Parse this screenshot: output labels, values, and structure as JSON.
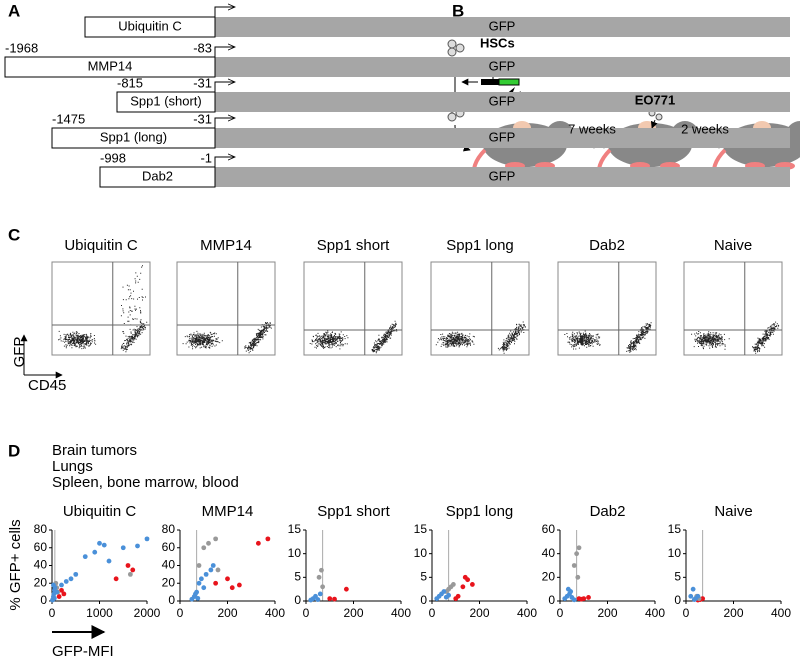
{
  "panel_a": {
    "label": "A",
    "reporter": "GFP",
    "constructs": [
      {
        "name": "Ubiquitin C"
      },
      {
        "name": "MMP14",
        "start": -1968,
        "end": -83
      },
      {
        "name": "Spp1 (short)",
        "start": -815,
        "end": -31
      },
      {
        "name": "Spp1 (long)",
        "start": -1475,
        "end": -31
      },
      {
        "name": "Dab2",
        "start": -998,
        "end": -1
      }
    ]
  },
  "panel_b": {
    "label": "B",
    "cells": "HSCs",
    "tumor": "EO771",
    "steps": [
      "7 weeks",
      "2 weeks"
    ]
  },
  "panel_c": {
    "label": "C",
    "y_axis": "GFP",
    "x_axis": "CD45",
    "samples": [
      "Ubiquitin C",
      "MMP14",
      "Spp1 short",
      "Spp1 long",
      "Dab2",
      "Naive"
    ]
  },
  "panel_d": {
    "label": "D",
    "legend": [
      {
        "name": "Brain tumors",
        "color": "#e8141c"
      },
      {
        "name": "Lungs",
        "color": "#999999"
      },
      {
        "name": "Spleen, bone marrow, blood",
        "color": "#2a78b0"
      }
    ],
    "y_label": "% GFP+ cells",
    "x_label": "GFP-MFI"
  },
  "chart_data": [
    {
      "type": "scatter",
      "title": "Ubiquitin C",
      "xlim": [
        0,
        2000
      ],
      "xticks": [
        0,
        1000,
        2000
      ],
      "ylim": [
        0,
        80
      ],
      "yticks": [
        0,
        20,
        40,
        60,
        80
      ],
      "threshold_x": 60,
      "series": [
        {
          "color": "#e8141c",
          "x": [
            150,
            250,
            200,
            1350,
            1600,
            1700
          ],
          "y": [
            5,
            8,
            12,
            25,
            40,
            35
          ]
        },
        {
          "color": "#999999",
          "x": [
            50,
            80,
            100,
            120,
            1650
          ],
          "y": [
            18,
            20,
            15,
            10,
            30
          ]
        },
        {
          "color": "#4a90d9",
          "x": [
            10,
            20,
            30,
            40,
            50,
            50,
            60,
            30,
            100,
            200,
            300,
            400,
            500,
            700,
            900,
            1000,
            1100,
            1200,
            1500,
            1800,
            2000
          ],
          "y": [
            1,
            2,
            5,
            8,
            3,
            12,
            15,
            18,
            10,
            18,
            22,
            25,
            30,
            50,
            55,
            65,
            63,
            45,
            60,
            62,
            70
          ]
        }
      ]
    },
    {
      "type": "scatter",
      "title": "MMP14",
      "xlim": [
        0,
        400
      ],
      "xticks": [
        0,
        200,
        400
      ],
      "ylim": [
        0,
        80
      ],
      "yticks": [
        0,
        20,
        40,
        60,
        80
      ],
      "threshold_x": 70,
      "series": [
        {
          "color": "#e8141c",
          "x": [
            150,
            200,
            220,
            250,
            330,
            370
          ],
          "y": [
            20,
            25,
            15,
            18,
            65,
            70
          ]
        },
        {
          "color": "#999999",
          "x": [
            80,
            100,
            120,
            150,
            160
          ],
          "y": [
            40,
            60,
            65,
            70,
            35
          ]
        },
        {
          "color": "#4a90d9",
          "x": [
            50,
            60,
            65,
            70,
            75,
            80,
            90,
            100,
            110,
            130,
            140
          ],
          "y": [
            2,
            5,
            8,
            10,
            3,
            20,
            25,
            15,
            30,
            35,
            40
          ]
        }
      ]
    },
    {
      "type": "scatter",
      "title": "Spp1 short",
      "xlim": [
        0,
        400
      ],
      "xticks": [
        0,
        200,
        400
      ],
      "ylim": [
        0,
        15
      ],
      "yticks": [
        0,
        5,
        10,
        15
      ],
      "threshold_x": 70,
      "series": [
        {
          "color": "#e8141c",
          "x": [
            100,
            120,
            170
          ],
          "y": [
            0.5,
            0.4,
            2.5
          ]
        },
        {
          "color": "#999999",
          "x": [
            55,
            65,
            70
          ],
          "y": [
            5,
            6.5,
            3
          ]
        },
        {
          "color": "#4a90d9",
          "x": [
            20,
            30,
            40,
            50,
            60
          ],
          "y": [
            0.2,
            0.5,
            1,
            0.3,
            1.5
          ]
        }
      ]
    },
    {
      "type": "scatter",
      "title": "Spp1 long",
      "xlim": [
        0,
        400
      ],
      "xticks": [
        0,
        200,
        400
      ],
      "ylim": [
        0,
        15
      ],
      "yticks": [
        0,
        5,
        10,
        15
      ],
      "threshold_x": 70,
      "series": [
        {
          "color": "#e8141c",
          "x": [
            100,
            110,
            130,
            140,
            150,
            170
          ],
          "y": [
            0.5,
            1,
            3,
            5,
            4.5,
            3.5
          ]
        },
        {
          "color": "#999999",
          "x": [
            60,
            70,
            80,
            90
          ],
          "y": [
            2,
            2.5,
            3,
            3.5
          ]
        },
        {
          "color": "#4a90d9",
          "x": [
            20,
            30,
            40,
            50,
            60,
            70
          ],
          "y": [
            0.5,
            1,
            1.5,
            2,
            0.8,
            1.2
          ]
        }
      ]
    },
    {
      "type": "scatter",
      "title": "Dab2",
      "xlim": [
        0,
        400
      ],
      "xticks": [
        0,
        200,
        400
      ],
      "ylim": [
        0,
        60
      ],
      "yticks": [
        0,
        20,
        40,
        60
      ],
      "threshold_x": 70,
      "series": [
        {
          "color": "#e8141c",
          "x": [
            80,
            90,
            100,
            120
          ],
          "y": [
            2,
            1.5,
            2,
            3
          ]
        },
        {
          "color": "#999999",
          "x": [
            60,
            70,
            75,
            80
          ],
          "y": [
            30,
            40,
            20,
            45
          ]
        },
        {
          "color": "#4a90d9",
          "x": [
            20,
            30,
            35,
            40,
            45,
            50,
            60
          ],
          "y": [
            2,
            4,
            10,
            6,
            8,
            3,
            1
          ]
        }
      ]
    },
    {
      "type": "scatter",
      "title": "Naive",
      "xlim": [
        0,
        400
      ],
      "xticks": [
        0,
        200,
        400
      ],
      "ylim": [
        0,
        15
      ],
      "yticks": [
        0,
        5,
        10,
        15
      ],
      "threshold_x": 70,
      "series": [
        {
          "color": "#e8141c",
          "x": [
            50,
            60,
            70
          ],
          "y": [
            0.2,
            0.3,
            0.5
          ]
        },
        {
          "color": "#999999",
          "x": [
            45,
            55
          ],
          "y": [
            1,
            0.5
          ]
        },
        {
          "color": "#4a90d9",
          "x": [
            20,
            30,
            35,
            40,
            50
          ],
          "y": [
            1,
            2.5,
            0.3,
            0.5,
            1
          ]
        }
      ]
    }
  ]
}
